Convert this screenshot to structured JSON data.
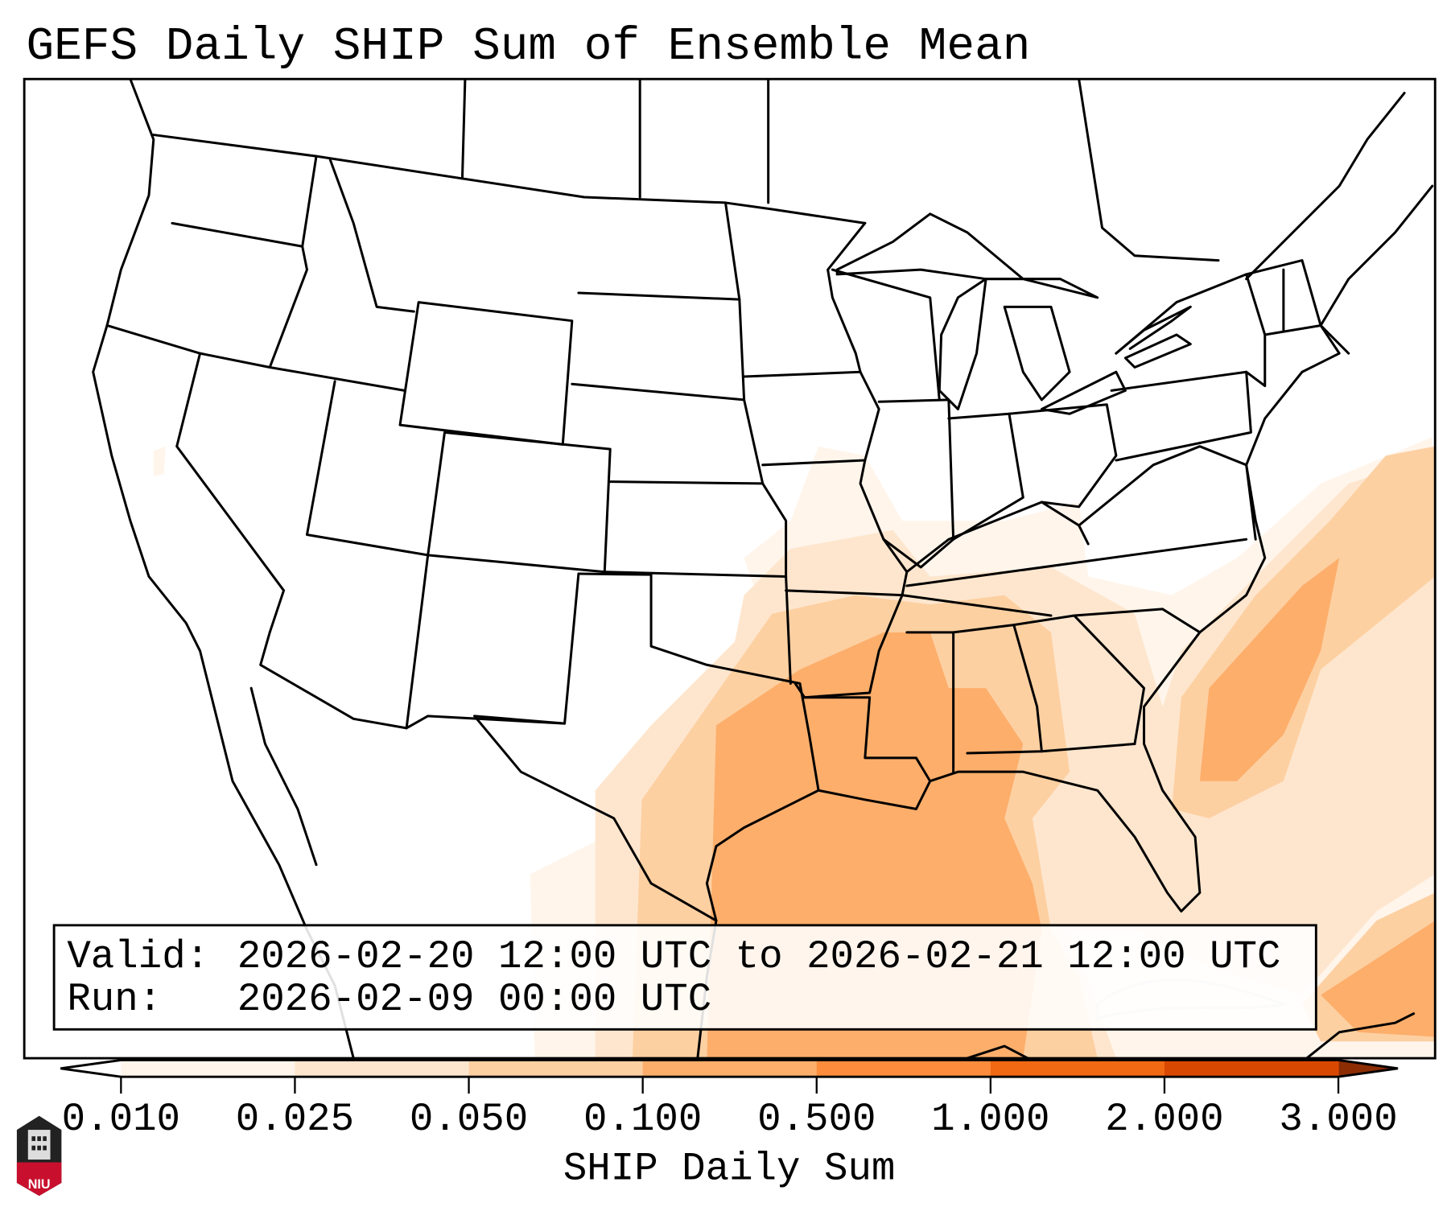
{
  "title": "GEFS Daily SHIP Sum of Ensemble Mean",
  "info": {
    "valid_label": "Valid:",
    "valid_value": "2026-02-20 12:00 UTC to 2026-02-21 12:00 UTC",
    "run_label": "Run:",
    "run_value": "2026-02-09 00:00 UTC"
  },
  "colorbar": {
    "label": "SHIP Daily Sum",
    "ticks": [
      "0.010",
      "0.025",
      "0.050",
      "0.100",
      "0.500",
      "1.000",
      "2.000",
      "3.000"
    ],
    "colors": [
      "#fff5eb",
      "#fee6ce",
      "#fdd0a2",
      "#fdae6b",
      "#fd8d3c",
      "#f16913",
      "#d94801"
    ],
    "under_color": "#ffffff",
    "over_color": "#8c2d04"
  },
  "logo": {
    "text": "NIU",
    "color": "#c8102e"
  }
}
